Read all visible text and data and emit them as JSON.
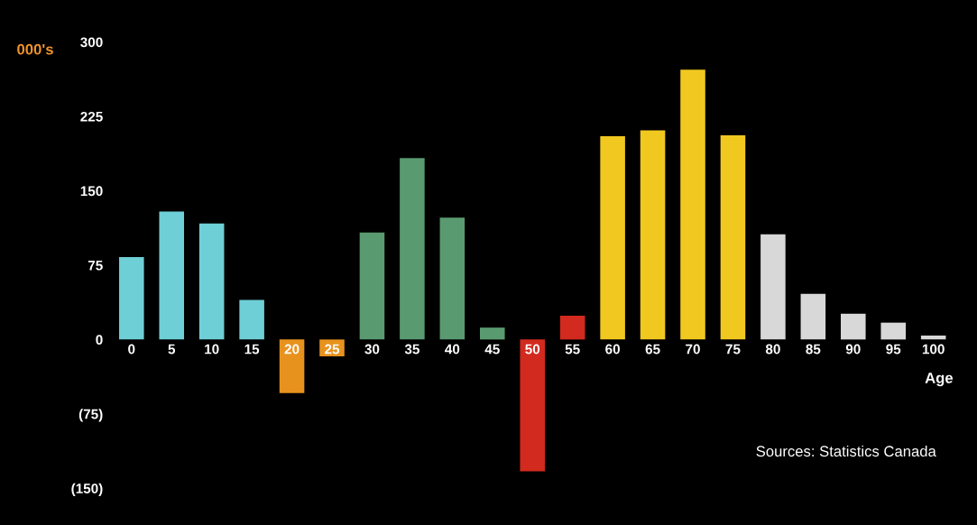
{
  "chart_data": {
    "type": "bar",
    "ylabel": "000's",
    "xlabel": "Age",
    "categories": [
      "0",
      "5",
      "10",
      "15",
      "20",
      "25",
      "30",
      "35",
      "40",
      "45",
      "50",
      "55",
      "60",
      "65",
      "70",
      "75",
      "80",
      "85",
      "90",
      "95",
      "100"
    ],
    "values": [
      83,
      129,
      117,
      40,
      -54,
      -17,
      108,
      183,
      123,
      12,
      -133,
      24,
      205,
      211,
      272,
      206,
      106,
      46,
      26,
      17,
      4
    ],
    "colors": [
      "#6ecfd6",
      "#6ecfd6",
      "#6ecfd6",
      "#6ecfd6",
      "#e8921e",
      "#e8921e",
      "#5a9a70",
      "#5a9a70",
      "#5a9a70",
      "#5a9a70",
      "#d22a1e",
      "#d22a1e",
      "#f0c820",
      "#f0c820",
      "#f0c820",
      "#f0c820",
      "#d8d8d8",
      "#d8d8d8",
      "#d8d8d8",
      "#d8d8d8",
      "#d8d8d8"
    ],
    "ylim": [
      -150,
      300
    ],
    "yticks": [
      {
        "value": 300,
        "label": "300"
      },
      {
        "value": 225,
        "label": "225"
      },
      {
        "value": 150,
        "label": "150"
      },
      {
        "value": 75,
        "label": "75"
      },
      {
        "value": 0,
        "label": "0"
      },
      {
        "value": -75,
        "label": "(75)"
      },
      {
        "value": -150,
        "label": "(150)"
      }
    ],
    "grid": false,
    "legend": false,
    "annotations": [
      "Sources: Statistics Canada"
    ]
  }
}
